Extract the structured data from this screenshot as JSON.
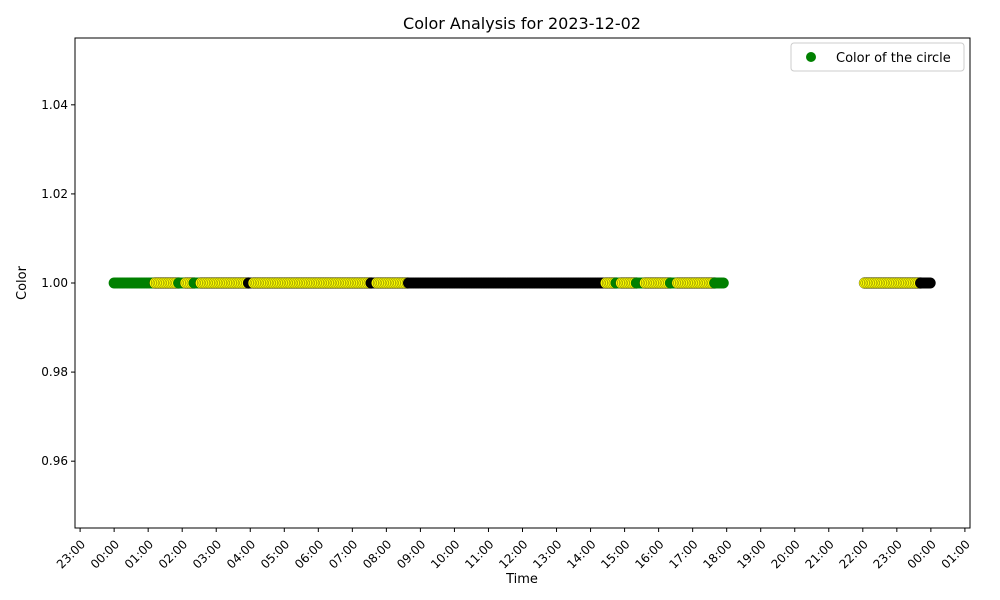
{
  "chart_data": {
    "type": "scatter",
    "title": "Color Analysis for 2023-12-02",
    "xlabel": "Time",
    "ylabel": "Color",
    "ylim": [
      0.945,
      1.055
    ],
    "xlim_hours": [
      -1.15,
      25.15
    ],
    "y_ticks": [
      "0.96",
      "0.98",
      "1.00",
      "1.02",
      "1.04"
    ],
    "y_tick_values": [
      0.96,
      0.98,
      1.0,
      1.02,
      1.04
    ],
    "x_ticks": [
      "23:00",
      "00:00",
      "01:00",
      "02:00",
      "03:00",
      "04:00",
      "05:00",
      "06:00",
      "07:00",
      "08:00",
      "09:00",
      "10:00",
      "11:00",
      "12:00",
      "13:00",
      "14:00",
      "15:00",
      "16:00",
      "17:00",
      "18:00",
      "19:00",
      "20:00",
      "21:00",
      "22:00",
      "23:00",
      "00:00",
      "01:00"
    ],
    "x_tick_hours": [
      -1,
      0,
      1,
      2,
      3,
      4,
      5,
      6,
      7,
      8,
      9,
      10,
      11,
      12,
      13,
      14,
      15,
      16,
      17,
      18,
      19,
      20,
      21,
      22,
      23,
      24,
      25
    ],
    "legend": {
      "label": "Color of the circle",
      "color": "#008000",
      "position": "top-right"
    },
    "colors": {
      "green": "#008000",
      "yellow": "#ffff00",
      "black": "#000000"
    },
    "segments": [
      {
        "color": "green",
        "start": 0.0,
        "end": 1.2,
        "step": 0.05
      },
      {
        "color": "yellow",
        "start": 1.2,
        "end": 1.9,
        "step": 0.05
      },
      {
        "color": "green",
        "start": 1.9,
        "end": 2.1,
        "step": 0.05
      },
      {
        "color": "yellow",
        "start": 2.1,
        "end": 2.35,
        "step": 0.05
      },
      {
        "color": "green",
        "start": 2.35,
        "end": 2.55,
        "step": 0.05
      },
      {
        "color": "yellow",
        "start": 2.55,
        "end": 3.95,
        "step": 0.05
      },
      {
        "color": "black",
        "start": 3.95,
        "end": 4.1,
        "step": 0.05
      },
      {
        "color": "yellow",
        "start": 4.1,
        "end": 7.55,
        "step": 0.05
      },
      {
        "color": "black",
        "start": 7.55,
        "end": 7.72,
        "step": 0.05
      },
      {
        "color": "yellow",
        "start": 7.72,
        "end": 8.65,
        "step": 0.05
      },
      {
        "color": "black",
        "start": 8.65,
        "end": 14.45,
        "step": 0.05
      },
      {
        "color": "yellow",
        "start": 14.45,
        "end": 14.75,
        "step": 0.05
      },
      {
        "color": "green",
        "start": 14.75,
        "end": 14.9,
        "step": 0.05
      },
      {
        "color": "yellow",
        "start": 14.9,
        "end": 15.35,
        "step": 0.05
      },
      {
        "color": "green",
        "start": 15.35,
        "end": 15.6,
        "step": 0.05
      },
      {
        "color": "yellow",
        "start": 15.6,
        "end": 16.35,
        "step": 0.05
      },
      {
        "color": "green",
        "start": 16.35,
        "end": 16.55,
        "step": 0.05
      },
      {
        "color": "yellow",
        "start": 16.55,
        "end": 17.65,
        "step": 0.05
      },
      {
        "color": "green",
        "start": 17.65,
        "end": 17.9,
        "step": 0.05
      },
      {
        "color": "yellow",
        "start": 22.05,
        "end": 23.7,
        "step": 0.05
      },
      {
        "color": "black",
        "start": 23.7,
        "end": 24.0,
        "step": 0.04
      }
    ],
    "points_y": 1.0
  }
}
